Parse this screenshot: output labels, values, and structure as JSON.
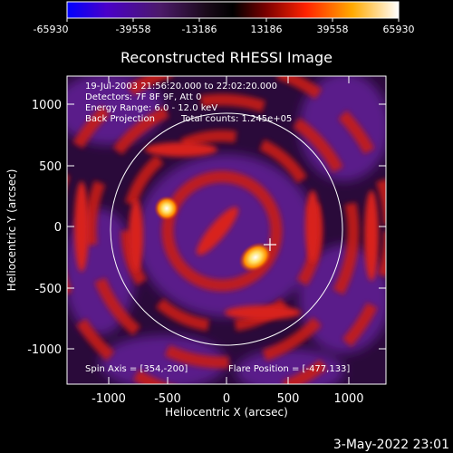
{
  "colorbar": {
    "ticks": [
      "-65930",
      "-39558",
      "-13186",
      "13186",
      "39558",
      "65930"
    ],
    "gradient_stops": [
      {
        "offset": "0%",
        "color": "#0000ff"
      },
      {
        "offset": "12%",
        "color": "#4a00c8"
      },
      {
        "offset": "28%",
        "color": "#4c1a6a"
      },
      {
        "offset": "42%",
        "color": "#1a0a1a"
      },
      {
        "offset": "50%",
        "color": "#000000"
      },
      {
        "offset": "60%",
        "color": "#7a0000"
      },
      {
        "offset": "72%",
        "color": "#ff2200"
      },
      {
        "offset": "86%",
        "color": "#ffaa00"
      },
      {
        "offset": "100%",
        "color": "#ffffff"
      }
    ]
  },
  "plot": {
    "title": "Reconstructed RHESSI Image",
    "xlabel": "Heliocentric X (arcsec)",
    "ylabel": "Heliocentric Y (arcsec)",
    "xticks": [
      "-1000",
      "-500",
      "0",
      "500",
      "1000"
    ],
    "yticks": [
      "1000",
      "500",
      "0",
      "-500",
      "-1000"
    ]
  },
  "info": {
    "time_range": "19-Jul-2003 21:56:20.000 to 22:02:20.000",
    "detectors": "Detectors: 7F 8F 9F, Att 0",
    "energy": "Energy Range: 6.0 - 12.0 keV",
    "method": "Back Projection",
    "counts": "Total counts: 1.245e+05",
    "spin_axis": "Spin Axis = [354,-200]",
    "flare_position": "Flare Position = [-477,133]"
  },
  "footer": {
    "timestamp": "3-May-2022 23:01"
  },
  "colors": {
    "background": "#000000",
    "purple": "#5a1a8a",
    "red": "#c81a14",
    "orange": "#ff8c00",
    "white": "#ffffff"
  }
}
